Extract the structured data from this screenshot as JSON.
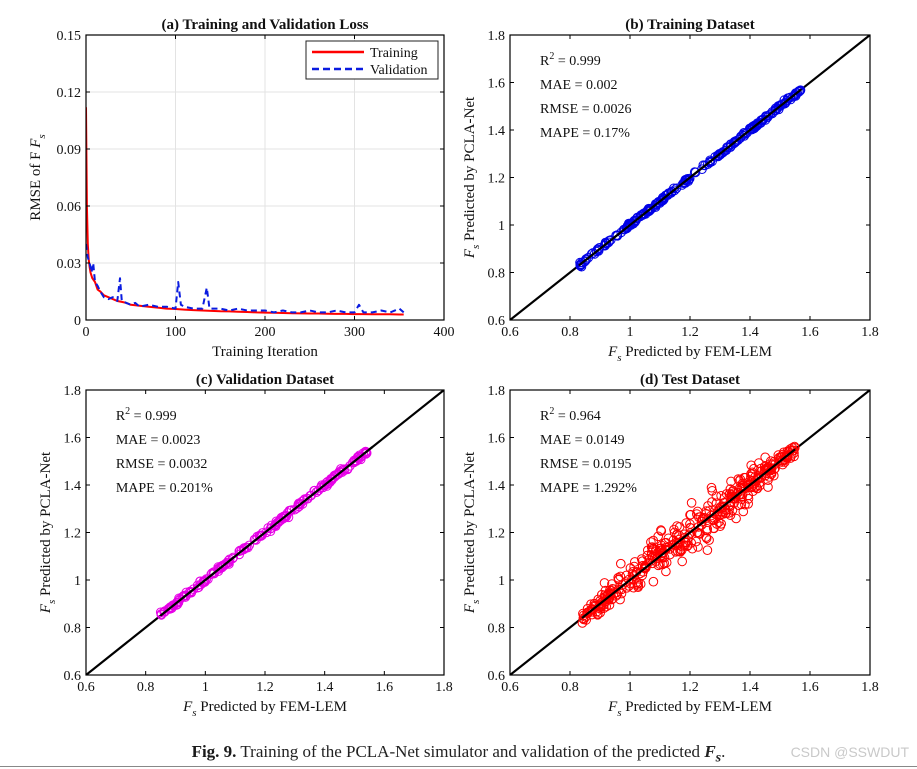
{
  "caption": {
    "fig_label": "Fig. 9.",
    "text": " Training of the PCLA-Net simulator and validation of the predicted ",
    "symbol": "F",
    "subscript": "s",
    "end": "."
  },
  "watermark": "CSDN @SSWDUT",
  "chart_data": [
    {
      "id": "a",
      "type": "line",
      "title": "(a) Training and Validation Loss",
      "xlabel": "Training Iteration",
      "ylabel": "RMSE of F",
      "ylabel_sub": "s",
      "xlim": [
        0,
        400
      ],
      "ylim": [
        0,
        0.15
      ],
      "xticks": [
        0,
        100,
        200,
        300,
        400
      ],
      "xtick_labels": [
        "0",
        "100",
        "200",
        "300",
        "400"
      ],
      "yticks": [
        0,
        0.03,
        0.06,
        0.09,
        0.12,
        0.15
      ],
      "ytick_labels": [
        "0",
        "0.03",
        "0.06",
        "0.09",
        "0.12",
        "0.15"
      ],
      "grid": true,
      "legend_position": "top-right",
      "series": [
        {
          "name": "Training",
          "color": "#ff0000",
          "style": "solid",
          "x": [
            0,
            1,
            2,
            3,
            4,
            5,
            7,
            10,
            13,
            16,
            20,
            25,
            30,
            35,
            40,
            45,
            50,
            60,
            70,
            80,
            90,
            100,
            110,
            120,
            130,
            140,
            150,
            160,
            170,
            180,
            190,
            200,
            210,
            220,
            230,
            240,
            250,
            260,
            270,
            280,
            290,
            300,
            310,
            320,
            330,
            340,
            350,
            355
          ],
          "y": [
            0.112,
            0.06,
            0.04,
            0.032,
            0.028,
            0.025,
            0.022,
            0.02,
            0.016,
            0.015,
            0.013,
            0.012,
            0.011,
            0.01,
            0.0095,
            0.009,
            0.008,
            0.0075,
            0.007,
            0.0065,
            0.006,
            0.0058,
            0.0055,
            0.0052,
            0.005,
            0.0048,
            0.0046,
            0.0045,
            0.0043,
            0.0042,
            0.004,
            0.0039,
            0.0038,
            0.0037,
            0.0036,
            0.0035,
            0.0034,
            0.0034,
            0.0033,
            0.0032,
            0.0032,
            0.0031,
            0.0031,
            0.003,
            0.003,
            0.003,
            0.0029,
            0.0029
          ]
        },
        {
          "name": "Validation",
          "color": "#0a1be0",
          "style": "dashed",
          "x": [
            0,
            2,
            4,
            6,
            8,
            10,
            13,
            16,
            20,
            25,
            30,
            35,
            38,
            40,
            45,
            50,
            55,
            60,
            70,
            80,
            90,
            100,
            103,
            106,
            110,
            120,
            130,
            135,
            138,
            140,
            150,
            160,
            170,
            180,
            190,
            200,
            210,
            220,
            230,
            240,
            250,
            260,
            270,
            280,
            290,
            300,
            305,
            310,
            320,
            330,
            340,
            350,
            355
          ],
          "y": [
            0.04,
            0.033,
            0.03,
            0.025,
            0.03,
            0.02,
            0.018,
            0.015,
            0.012,
            0.011,
            0.012,
            0.01,
            0.022,
            0.01,
            0.009,
            0.008,
            0.009,
            0.007,
            0.008,
            0.007,
            0.007,
            0.006,
            0.02,
            0.008,
            0.007,
            0.006,
            0.006,
            0.017,
            0.006,
            0.006,
            0.006,
            0.005,
            0.006,
            0.005,
            0.005,
            0.005,
            0.004,
            0.005,
            0.004,
            0.004,
            0.005,
            0.004,
            0.004,
            0.005,
            0.004,
            0.004,
            0.008,
            0.004,
            0.004,
            0.005,
            0.004,
            0.006,
            0.004
          ]
        }
      ]
    },
    {
      "id": "b",
      "type": "scatter",
      "title": "(b) Training Dataset",
      "xlabel": "Predicted by FEM-LEM",
      "ylabel": "Predicted by PCLA-Net",
      "label_symbol": "F",
      "label_sub": "s",
      "xlim": [
        0.6,
        1.8
      ],
      "ylim": [
        0.6,
        1.8
      ],
      "ticks": [
        0.6,
        0.8,
        1,
        1.2,
        1.4,
        1.6,
        1.8
      ],
      "tick_labels": [
        "0.6",
        "0.8",
        "1",
        "1.2",
        "1.4",
        "1.6",
        "1.8"
      ],
      "grid": false,
      "marker_color": "#0000e6",
      "x_range": [
        0.83,
        1.57
      ],
      "spread": 0.004,
      "count": 240,
      "stats": [
        "R",
        "2",
        " = 0.999",
        "MAE = 0.002",
        "RMSE = 0.0026",
        "MAPE = 0.17%"
      ]
    },
    {
      "id": "c",
      "type": "scatter",
      "title": "(c) Validation Dataset",
      "xlabel": "Predicted by FEM-LEM",
      "ylabel": "Predicted by PCLA-Net",
      "label_symbol": "F",
      "label_sub": "s",
      "xlim": [
        0.6,
        1.8
      ],
      "ylim": [
        0.6,
        1.8
      ],
      "ticks": [
        0.6,
        0.8,
        1,
        1.2,
        1.4,
        1.6,
        1.8
      ],
      "tick_labels": [
        "0.6",
        "0.8",
        "1",
        "1.2",
        "1.4",
        "1.6",
        "1.8"
      ],
      "grid": false,
      "marker_color": "#e600e6",
      "x_range": [
        0.85,
        1.56
      ],
      "spread": 0.005,
      "count": 200,
      "stats": [
        "R",
        "2",
        " = 0.999",
        "MAE = 0.0023",
        "RMSE = 0.0032",
        "MAPE = 0.201%"
      ]
    },
    {
      "id": "d",
      "type": "scatter",
      "title": "(d) Test Dataset",
      "xlabel": "Predicted by FEM-LEM",
      "ylabel": "Predicted by PCLA-Net",
      "label_symbol": "F",
      "label_sub": "s",
      "xlim": [
        0.6,
        1.8
      ],
      "ylim": [
        0.6,
        1.8
      ],
      "ticks": [
        0.6,
        0.8,
        1,
        1.2,
        1.4,
        1.6,
        1.8
      ],
      "tick_labels": [
        "0.6",
        "0.8",
        "1",
        "1.2",
        "1.4",
        "1.6",
        "1.8"
      ],
      "grid": false,
      "marker_color": "#ff0000",
      "x_range": [
        0.84,
        1.55
      ],
      "spread": 0.03,
      "count": 420,
      "stats": [
        "R",
        "2",
        " = 0.964",
        "MAE = 0.0149",
        "RMSE = 0.0195",
        "MAPE = 1.292%"
      ]
    }
  ]
}
